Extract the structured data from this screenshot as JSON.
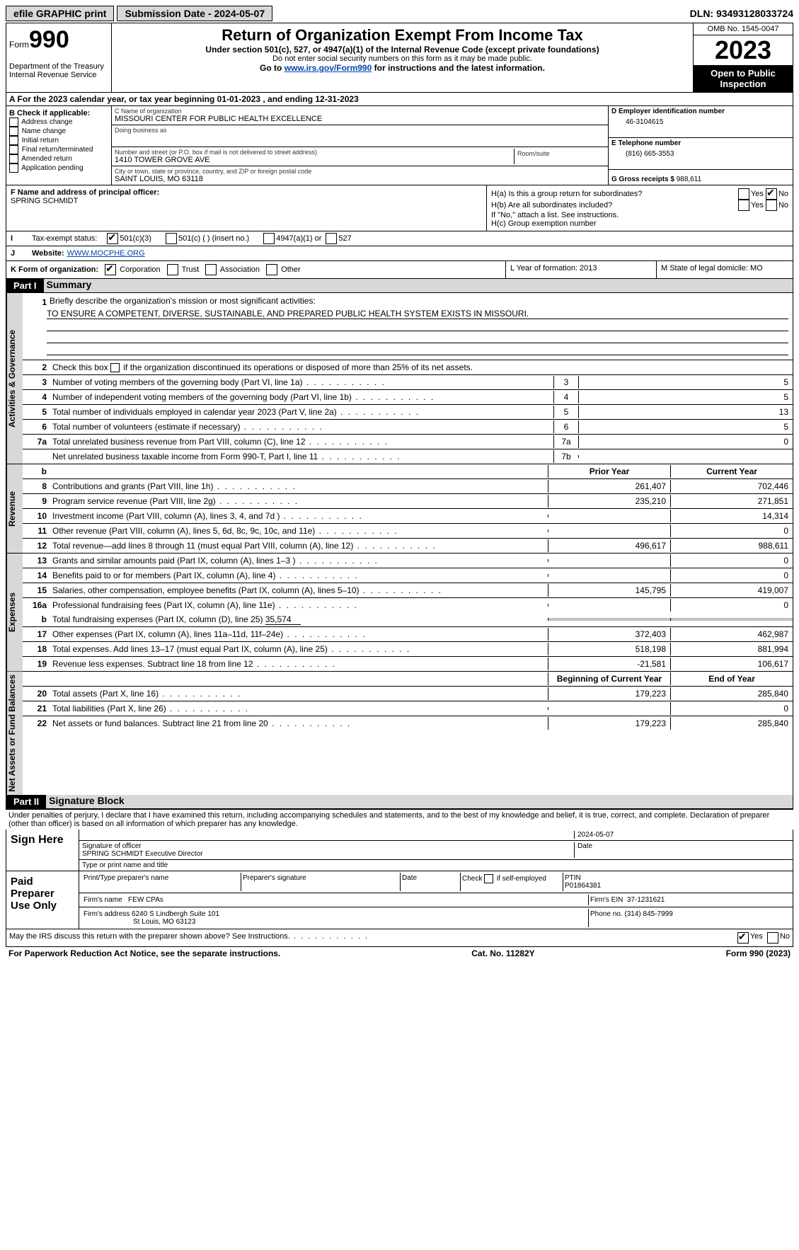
{
  "toolbar": {
    "efile_label": "efile GRAPHIC print",
    "submission_label": "Submission Date - 2024-05-07",
    "dln_label": "DLN: 93493128033724"
  },
  "header": {
    "form_word": "Form",
    "form_number": "990",
    "dept": "Department of the Treasury Internal Revenue Service",
    "title": "Return of Organization Exempt From Income Tax",
    "subtitle": "Under section 501(c), 527, or 4947(a)(1) of the Internal Revenue Code (except private foundations)",
    "ssn_note": "Do not enter social security numbers on this form as it may be made public.",
    "goto_prefix": "Go to ",
    "goto_link": "www.irs.gov/Form990",
    "goto_suffix": " for instructions and the latest information.",
    "omb": "OMB No. 1545-0047",
    "year": "2023",
    "open": "Open to Public Inspection"
  },
  "rowA": "A For the 2023 calendar year, or tax year beginning 01-01-2023   , and ending 12-31-2023",
  "boxB": {
    "header": "B Check if applicable:",
    "items": [
      "Address change",
      "Name change",
      "Initial return",
      "Final return/terminated",
      "Amended return",
      "Application pending"
    ]
  },
  "boxC": {
    "name_lbl": "C Name of organization",
    "name": "MISSOURI CENTER FOR PUBLIC HEALTH EXCELLENCE",
    "dba_lbl": "Doing business as",
    "dba": "",
    "addr_lbl": "Number and street (or P.O. box if mail is not delivered to street address)",
    "addr": "1410 TOWER GROVE AVE",
    "room_lbl": "Room/suite",
    "city_lbl": "City or town, state or province, country, and ZIP or foreign postal code",
    "city": "SAINT LOUIS, MO  63118"
  },
  "boxD": {
    "lbl": "D Employer identification number",
    "val": "46-3104615"
  },
  "boxE": {
    "lbl": "E Telephone number",
    "val": "(816) 665-3553"
  },
  "boxG": {
    "lbl": "G Gross receipts $",
    "val": "988,611"
  },
  "boxF": {
    "lbl": "F  Name and address of principal officer:",
    "name": "SPRING SCHMIDT"
  },
  "boxH": {
    "a": "H(a)  Is this a group return for subordinates?",
    "b": "H(b)  Are all subordinates included?",
    "b_note": "If \"No,\" attach a list. See instructions.",
    "c": "H(c)  Group exemption number",
    "yes": "Yes",
    "no": "No"
  },
  "rowI": {
    "lbl": "I",
    "txt": "Tax-exempt status:",
    "opt1": "501(c)(3)",
    "opt2": "501(c) (  ) (insert no.)",
    "opt3": "4947(a)(1) or",
    "opt4": "527"
  },
  "rowJ": {
    "lbl": "J",
    "txt": "Website:",
    "val": "WWW.MOCPHE.ORG"
  },
  "rowK": {
    "lbl": "K Form of organization:",
    "opts": [
      "Corporation",
      "Trust",
      "Association",
      "Other"
    ],
    "L": "L Year of formation: 2013",
    "M": "M State of legal domicile: MO"
  },
  "part1": {
    "hdr": "Part I",
    "title": "Summary",
    "sections": {
      "gov": "Activities & Governance",
      "rev": "Revenue",
      "exp": "Expenses",
      "net": "Net Assets or Fund Balances"
    },
    "line1_lbl": "Briefly describe the organization's mission or most significant activities:",
    "line1_val": "TO ENSURE A COMPETENT, DIVERSE, SUSTAINABLE, AND PREPARED PUBLIC HEALTH SYSTEM EXISTS IN MISSOURI.",
    "line2": "Check this box      if the organization discontinued its operations or disposed of more than 25% of its net assets.",
    "lines_gov": [
      {
        "n": "3",
        "d": "Number of voting members of the governing body (Part VI, line 1a)",
        "box": "3",
        "v": "5"
      },
      {
        "n": "4",
        "d": "Number of independent voting members of the governing body (Part VI, line 1b)",
        "box": "4",
        "v": "5"
      },
      {
        "n": "5",
        "d": "Total number of individuals employed in calendar year 2023 (Part V, line 2a)",
        "box": "5",
        "v": "13"
      },
      {
        "n": "6",
        "d": "Total number of volunteers (estimate if necessary)",
        "box": "6",
        "v": "5"
      },
      {
        "n": "7a",
        "d": "Total unrelated business revenue from Part VIII, column (C), line 12",
        "box": "7a",
        "v": "0"
      },
      {
        "n": "",
        "d": "Net unrelated business taxable income from Form 990-T, Part I, line 11",
        "box": "7b",
        "v": ""
      }
    ],
    "col_b": "b",
    "col_prior": "Prior Year",
    "col_current": "Current Year",
    "lines_rev": [
      {
        "n": "8",
        "d": "Contributions and grants (Part VIII, line 1h)",
        "p": "261,407",
        "c": "702,446"
      },
      {
        "n": "9",
        "d": "Program service revenue (Part VIII, line 2g)",
        "p": "235,210",
        "c": "271,851"
      },
      {
        "n": "10",
        "d": "Investment income (Part VIII, column (A), lines 3, 4, and 7d )",
        "p": "",
        "c": "14,314"
      },
      {
        "n": "11",
        "d": "Other revenue (Part VIII, column (A), lines 5, 6d, 8c, 9c, 10c, and 11e)",
        "p": "",
        "c": "0"
      },
      {
        "n": "12",
        "d": "Total revenue—add lines 8 through 11 (must equal Part VIII, column (A), line 12)",
        "p": "496,617",
        "c": "988,611"
      }
    ],
    "lines_exp": [
      {
        "n": "13",
        "d": "Grants and similar amounts paid (Part IX, column (A), lines 1–3 )",
        "p": "",
        "c": "0"
      },
      {
        "n": "14",
        "d": "Benefits paid to or for members (Part IX, column (A), line 4)",
        "p": "",
        "c": "0"
      },
      {
        "n": "15",
        "d": "Salaries, other compensation, employee benefits (Part IX, column (A), lines 5–10)",
        "p": "145,795",
        "c": "419,007"
      },
      {
        "n": "16a",
        "d": "Professional fundraising fees (Part IX, column (A), line 11e)",
        "p": "",
        "c": "0"
      }
    ],
    "line16b_n": "b",
    "line16b_d": "Total fundraising expenses (Part IX, column (D), line 25)",
    "line16b_v": "35,574",
    "lines_exp2": [
      {
        "n": "17",
        "d": "Other expenses (Part IX, column (A), lines 11a–11d, 11f–24e)",
        "p": "372,403",
        "c": "462,987"
      },
      {
        "n": "18",
        "d": "Total expenses. Add lines 13–17 (must equal Part IX, column (A), line 25)",
        "p": "518,198",
        "c": "881,994"
      },
      {
        "n": "19",
        "d": "Revenue less expenses. Subtract line 18 from line 12",
        "p": "-21,581",
        "c": "106,617"
      }
    ],
    "col_begin": "Beginning of Current Year",
    "col_end": "End of Year",
    "lines_net": [
      {
        "n": "20",
        "d": "Total assets (Part X, line 16)",
        "p": "179,223",
        "c": "285,840"
      },
      {
        "n": "21",
        "d": "Total liabilities (Part X, line 26)",
        "p": "",
        "c": "0"
      },
      {
        "n": "22",
        "d": "Net assets or fund balances. Subtract line 21 from line 20",
        "p": "179,223",
        "c": "285,840"
      }
    ]
  },
  "part2": {
    "hdr": "Part II",
    "title": "Signature Block",
    "decl": "Under penalties of perjury, I declare that I have examined this return, including accompanying schedules and statements, and to the best of my knowledge and belief, it is true, correct, and complete. Declaration of preparer (other than officer) is based on all information of which preparer has any knowledge.",
    "sign_here": "Sign Here",
    "sig_officer_lbl": "Signature of officer",
    "sig_date": "2024-05-07",
    "date_lbl": "Date",
    "officer_name": "SPRING SCHMIDT  Executive Director",
    "type_lbl": "Type or print name and title",
    "paid_prep": "Paid Preparer Use Only",
    "prep_name_lbl": "Print/Type preparer's name",
    "prep_sig_lbl": "Preparer's signature",
    "prep_date_lbl": "Date",
    "self_emp": "Check       if self-employed",
    "ptin_lbl": "PTIN",
    "ptin": "P01864381",
    "firm_name_lbl": "Firm's name",
    "firm_name": "FEW CPAs",
    "firm_ein_lbl": "Firm's EIN",
    "firm_ein": "37-1231621",
    "firm_addr_lbl": "Firm's address",
    "firm_addr1": "6240 S Lindbergh Suite 101",
    "firm_addr2": "St Louis, MO  63123",
    "firm_phone_lbl": "Phone no.",
    "firm_phone": "(314) 845-7999",
    "discuss": "May the IRS discuss this return with the preparer shown above? See Instructions.",
    "yes": "Yes",
    "no": "No"
  },
  "footer": {
    "pra": "For Paperwork Reduction Act Notice, see the separate instructions.",
    "cat": "Cat. No. 11282Y",
    "form": "Form 990 (2023)"
  }
}
